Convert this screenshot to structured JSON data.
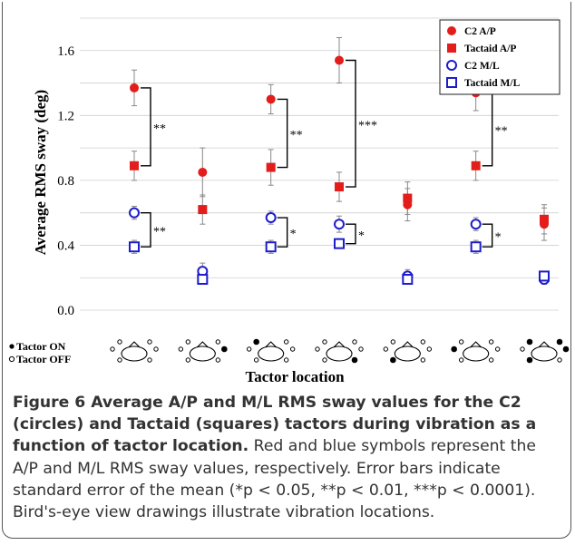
{
  "chart_data": {
    "type": "scatter",
    "ylabel": "Average RMS sway (deg)",
    "xlabel": "Tactor location",
    "ylim": [
      0,
      1.8
    ],
    "yticks": [
      "0.0",
      "0.4",
      "0.8",
      "1.2",
      "1.6"
    ],
    "grid": true,
    "legend_position": "top-right",
    "colors": {
      "ap": "#e31c1c",
      "ml": "#1c1ccc"
    },
    "series": [
      {
        "name": "C2 A/P",
        "marker": "filled-circle",
        "values": [
          1.37,
          0.85,
          1.3,
          1.54,
          0.65,
          1.34,
          0.53
        ],
        "error": [
          0.11,
          0.15,
          0.09,
          0.14,
          0.1,
          0.11,
          0.1
        ]
      },
      {
        "name": "Tactaid A/P",
        "marker": "filled-square",
        "values": [
          0.89,
          0.62,
          0.88,
          0.76,
          0.69,
          0.89,
          0.56
        ],
        "error": [
          0.09,
          0.09,
          0.11,
          0.09,
          0.1,
          0.09,
          0.09
        ]
      },
      {
        "name": "C2 M/L",
        "marker": "open-circle",
        "values": [
          0.6,
          0.24,
          0.57,
          0.53,
          0.21,
          0.53,
          0.19
        ],
        "error": [
          0.04,
          0.05,
          0.04,
          0.05,
          0.04,
          0.04,
          0.03
        ]
      },
      {
        "name": "Tactaid M/L",
        "marker": "open-square",
        "values": [
          0.39,
          0.19,
          0.39,
          0.41,
          0.19,
          0.39,
          0.21
        ],
        "error": [
          0.04,
          0.03,
          0.04,
          0.03,
          0.03,
          0.04,
          0.03
        ]
      }
    ],
    "significance": [
      {
        "group": 0,
        "pair": "ap",
        "label": "**"
      },
      {
        "group": 0,
        "pair": "ml",
        "label": "**"
      },
      {
        "group": 2,
        "pair": "ap",
        "label": "**"
      },
      {
        "group": 2,
        "pair": "ml",
        "label": "*"
      },
      {
        "group": 3,
        "pair": "ap",
        "label": "***"
      },
      {
        "group": 3,
        "pair": "ml",
        "label": "*"
      },
      {
        "group": 5,
        "pair": "ap",
        "label": "**"
      },
      {
        "group": 5,
        "pair": "ml",
        "label": "*"
      }
    ],
    "tactor_key": {
      "on": "Tactor ON",
      "off": "Tactor OFF"
    },
    "tactor_diagrams": [
      [
        0,
        0,
        0,
        0,
        0,
        0
      ],
      [
        0,
        0,
        0,
        0,
        0,
        1
      ],
      [
        0,
        1,
        0,
        0,
        0,
        0
      ],
      [
        0,
        0,
        0,
        1,
        0,
        0
      ],
      [
        0,
        0,
        1,
        0,
        0,
        0
      ],
      [
        1,
        0,
        0,
        0,
        0,
        0
      ],
      [
        0,
        1,
        1,
        0,
        1,
        1
      ]
    ]
  },
  "caption": {
    "title": "Figure 6 Average A/P and M/L RMS sway values for the C2 (circles) and Tactaid (squares) tactors during vibration as a function of tactor location.",
    "body": "Red and blue symbols represent the A/P and M/L RMS sway values, respectively. Error bars indicate standard error of the mean (*p < 0.05, **p < 0.01, ***p < 0.0001). Bird's-eye view drawings illustrate vibration locations."
  }
}
